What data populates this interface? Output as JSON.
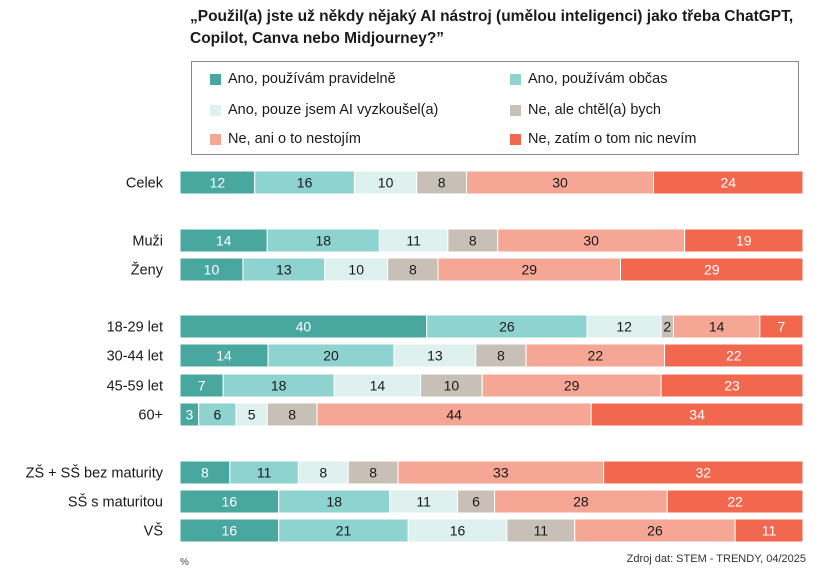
{
  "chart_data": {
    "type": "bar",
    "stacked": true,
    "orientation": "horizontal",
    "title": "„Použil(a) jste už někdy nějaký AI nástroj (umělou inteligenci) jako třeba ChatGPT, Copilot, Canva nebo Midjourney?”",
    "xlabel": "%",
    "xlim": [
      0,
      100
    ],
    "legend_position": "top",
    "series": [
      {
        "name": "Ano, používám pravidelně",
        "color": "#48a79f"
      },
      {
        "name": "Ano, používám občas",
        "color": "#8ed3cf"
      },
      {
        "name": "Ano, pouze jsem AI vyzkoušel(a)",
        "color": "#dff1ee"
      },
      {
        "name": "Ne, ale chtěl(a) bych",
        "color": "#c8c0b6"
      },
      {
        "name": "Ne, ani o to nestojím",
        "color": "#f6a694"
      },
      {
        "name": "Ne, zatím o tom nic nevím",
        "color": "#f2684f"
      }
    ],
    "categories": [
      {
        "label": "Celek",
        "values": [
          12,
          16,
          10,
          8,
          30,
          24
        ]
      },
      {
        "label": "Muži",
        "values": [
          14,
          18,
          11,
          8,
          30,
          19
        ]
      },
      {
        "label": "Ženy",
        "values": [
          10,
          13,
          10,
          8,
          29,
          29
        ]
      },
      {
        "label": "18-29 let",
        "values": [
          40,
          26,
          12,
          2,
          14,
          7
        ]
      },
      {
        "label": "30-44 let",
        "values": [
          14,
          20,
          13,
          8,
          22,
          22
        ]
      },
      {
        "label": "45-59 let",
        "values": [
          7,
          18,
          14,
          10,
          29,
          23
        ]
      },
      {
        "label": "60+",
        "values": [
          3,
          6,
          5,
          8,
          44,
          34
        ]
      },
      {
        "label": "ZŠ + SŠ bez maturity",
        "values": [
          8,
          11,
          8,
          8,
          33,
          32
        ]
      },
      {
        "label": "SŠ s maturitou",
        "values": [
          16,
          18,
          11,
          6,
          28,
          22
        ]
      },
      {
        "label": "VŠ",
        "values": [
          16,
          21,
          16,
          11,
          26,
          11
        ]
      }
    ]
  },
  "footer": {
    "unit": "%",
    "source": "Zdroj dat: STEM - TRENDY, 04/2025"
  }
}
